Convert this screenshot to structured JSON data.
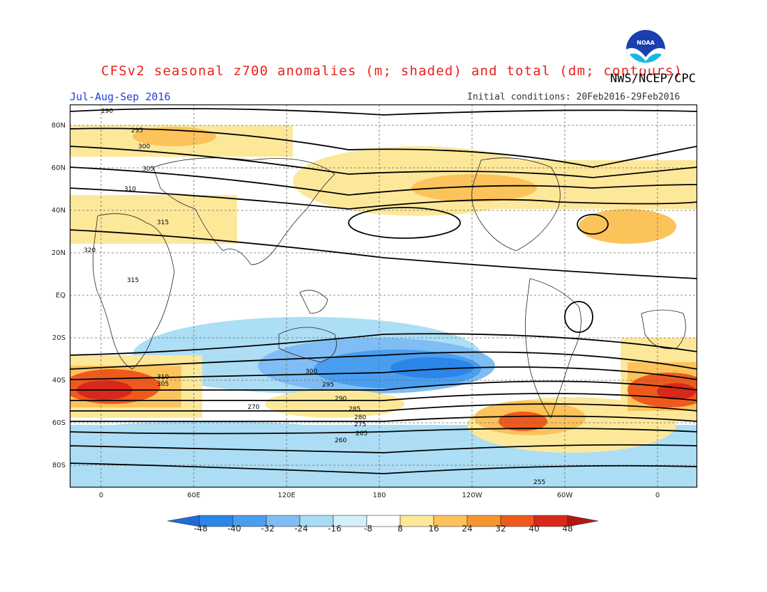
{
  "header": {
    "title": "CFSv2 seasonal z700 anomalies (m; shaded) and total (dm; contours)",
    "agency": "NWS/NCEP/CPC",
    "season": "Jul-Aug-Sep 2016",
    "initial_conditions": "Initial conditions: 20Feb2016-29Feb2016",
    "logo_text": "NOAA"
  },
  "map": {
    "lat_labels": [
      "80N",
      "60N",
      "40N",
      "20N",
      "EQ",
      "20S",
      "40S",
      "60S",
      "80S"
    ],
    "lon_labels": [
      "0",
      "60E",
      "120E",
      "180",
      "120W",
      "60W",
      "0"
    ],
    "contour_labels": [
      "290",
      "295",
      "300",
      "305",
      "310",
      "315",
      "320",
      "315",
      "310",
      "305",
      "300",
      "295",
      "290",
      "285",
      "280",
      "275",
      "270",
      "265",
      "260",
      "255"
    ]
  },
  "colorbar": {
    "ticks": [
      "-48",
      "-40",
      "-32",
      "-24",
      "-16",
      "-8",
      "8",
      "16",
      "24",
      "32",
      "40",
      "48"
    ],
    "colors": [
      "#1e6bd6",
      "#2c85e8",
      "#4a9ef0",
      "#7fbdf4",
      "#a8dcf4",
      "#d4f0fa",
      "#ffffff",
      "#fde89a",
      "#fcc35b",
      "#f7962f",
      "#ef5a1c",
      "#d9281a",
      "#b01812"
    ]
  }
}
